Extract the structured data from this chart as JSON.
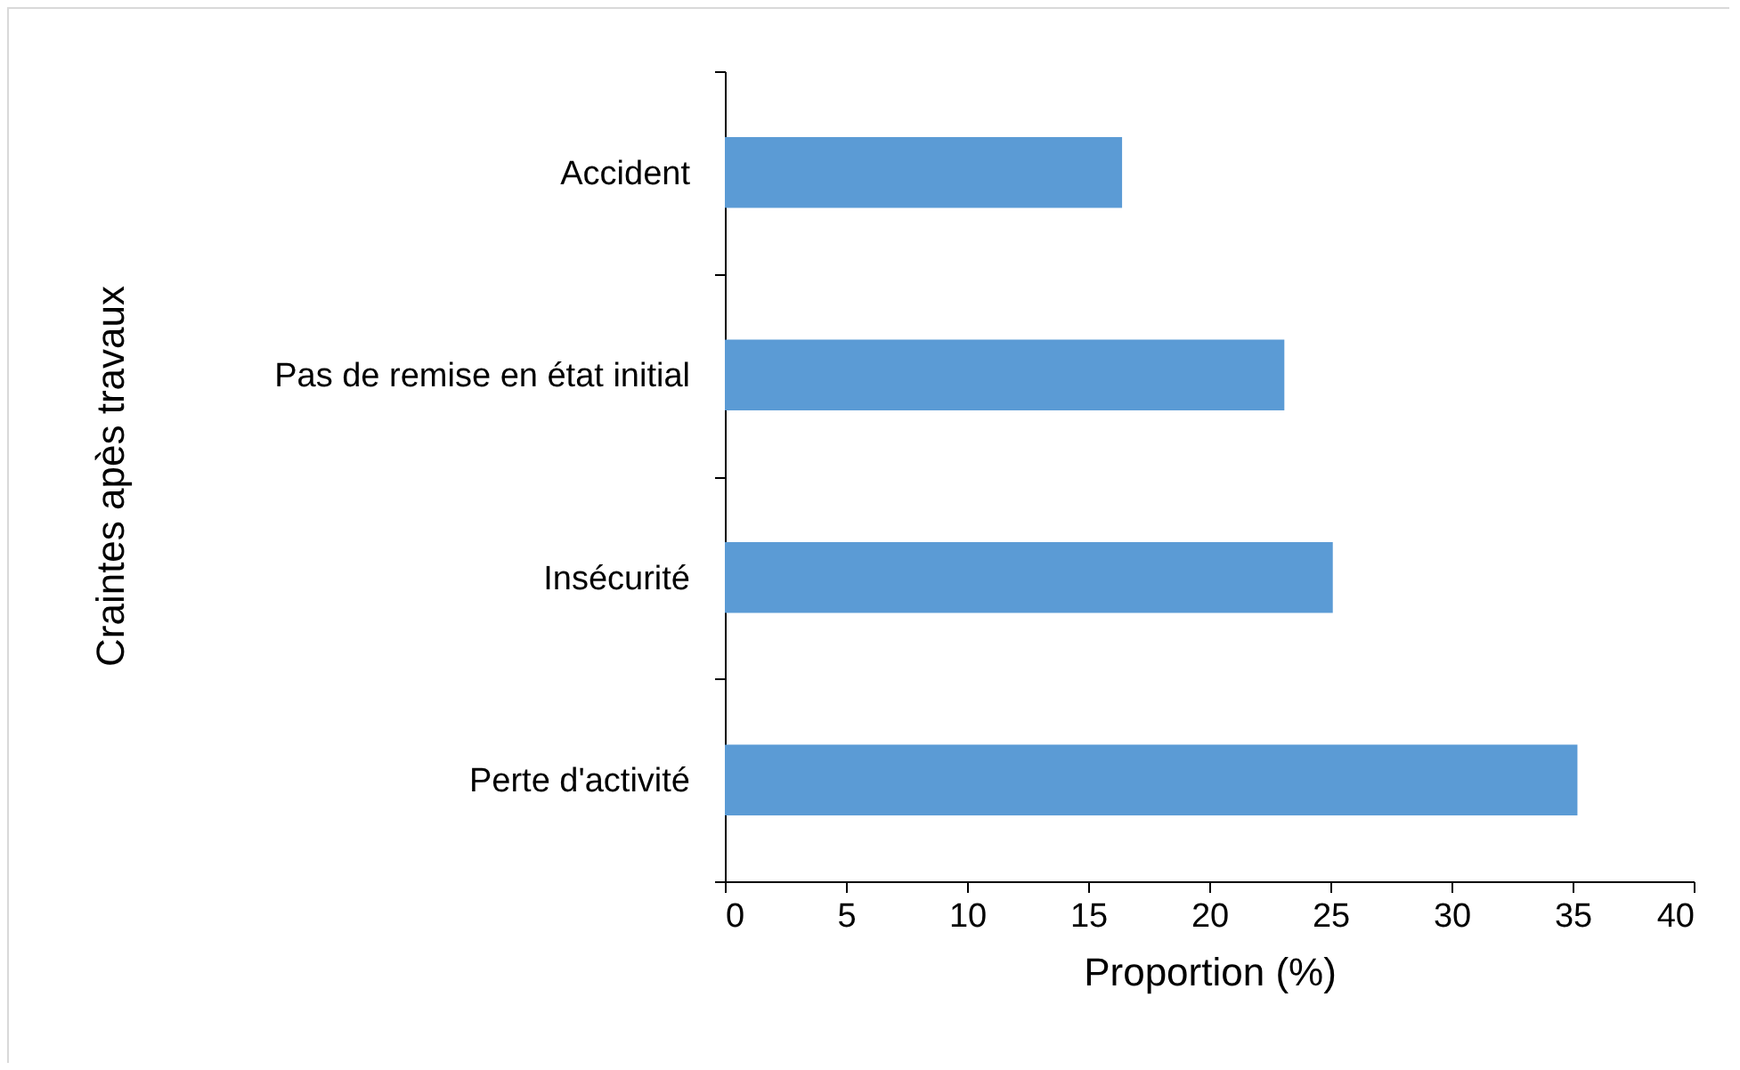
{
  "chart_data": {
    "type": "bar",
    "orientation": "horizontal",
    "ylabel": "Craintes apès travaux",
    "xlabel": "Proportion (%)",
    "categories": [
      "Accident",
      "Pas de remise en état initial",
      "Insécurité",
      "Perte d'activité"
    ],
    "values": [
      16.4,
      23.1,
      25.1,
      35.2
    ],
    "color": "#5b9bd5",
    "xlim": [
      0,
      40
    ],
    "xticks": [
      0,
      5,
      10,
      15,
      20,
      25,
      30,
      35,
      40
    ],
    "grid": false
  }
}
